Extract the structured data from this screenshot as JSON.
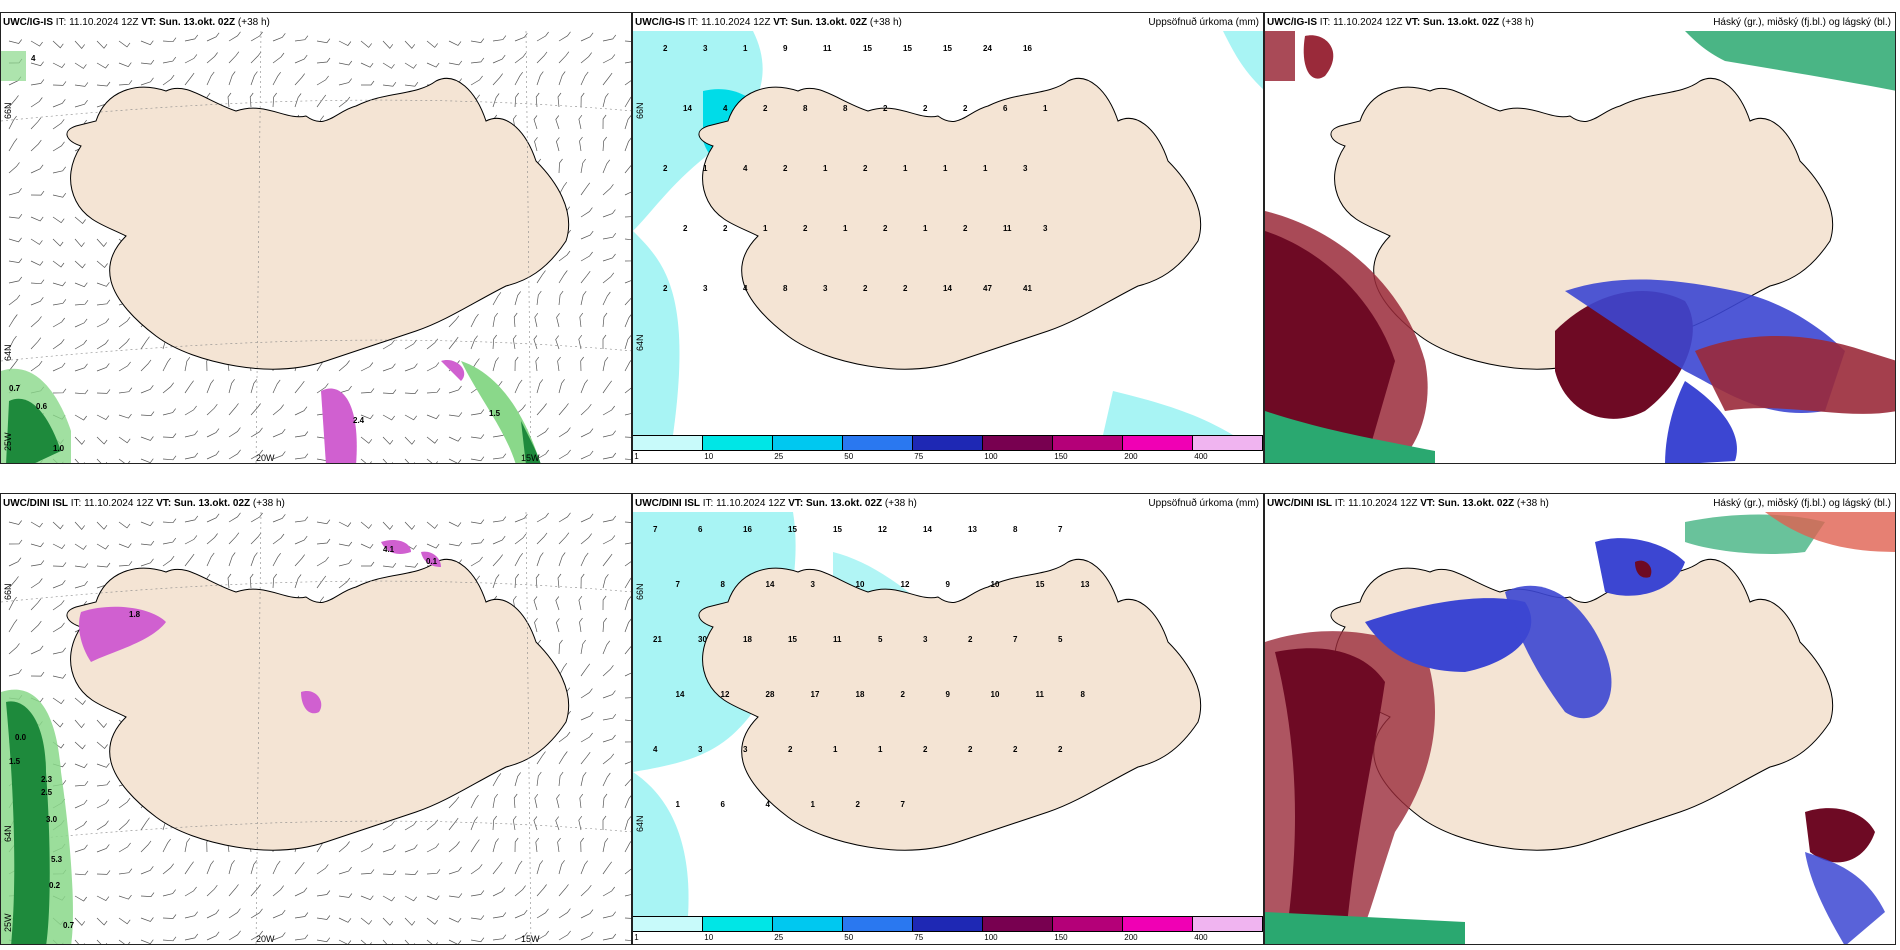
{
  "panels": [
    {
      "model": "UWC/IG-IS",
      "it": "IT: 11.10.2024 12Z",
      "vt": "VT: Sun. 13.okt. 02Z",
      "lead": "(+38 h)",
      "title": ""
    },
    {
      "model": "UWC/IG-IS",
      "it": "IT: 11.10.2024 12Z",
      "vt": "VT: Sun. 13.okt. 02Z",
      "lead": "(+38 h)",
      "title": "Uppsöfnuð úrkoma (mm)"
    },
    {
      "model": "UWC/IG-IS",
      "it": "IT: 11.10.2024 12Z",
      "vt": "VT: Sun. 13.okt. 02Z",
      "lead": "(+38 h)",
      "title": "Háský (gr.), miðský (fj.bl.) og lágský (bl.)"
    },
    {
      "model": "UWC/DINI ISL",
      "it": "IT: 11.10.2024 12Z",
      "vt": "VT: Sun. 13.okt. 02Z",
      "lead": "(+38 h)",
      "title": ""
    },
    {
      "model": "UWC/DINI ISL",
      "it": "IT: 11.10.2024 12Z",
      "vt": "VT: Sun. 13.okt. 02Z",
      "lead": "(+38 h)",
      "title": "Uppsöfnuð úrkoma (mm)"
    },
    {
      "model": "UWC/DINI ISL",
      "it": "IT: 11.10.2024 12Z",
      "vt": "VT: Sun. 13.okt. 02Z",
      "lead": "(+38 h)",
      "title": "Háský (gr.), miðský (fj.bl.) og lágský (bl.)"
    }
  ],
  "grid_labels": {
    "lat66": "66N",
    "lat64": "64N",
    "lon20": "20W",
    "lon15": "15W",
    "lon25": "25W"
  },
  "legend": {
    "ticks": [
      "1",
      "10",
      "25",
      "50",
      "75",
      "100",
      "150",
      "200",
      "400"
    ],
    "colors": [
      "#c8fafa",
      "#00e6e6",
      "#00c8f0",
      "#2a78f0",
      "#1e28b4",
      "#780050",
      "#b40078",
      "#f000b4",
      "#f0b4f0"
    ]
  },
  "colors": {
    "land": "#f4e4d4",
    "precip_light": "#a8f4f4",
    "precip_mid": "#00dce8",
    "high_cloud": "#2aa870",
    "mid_cloud": "#3c46d2",
    "low_cloud": "#7a0a2a"
  },
  "labels": {
    "wind_top": [
      "4",
      "0.6",
      "1.0",
      "0.7",
      "2.4",
      "1.5"
    ],
    "wind_bottom": [
      "0.0",
      "1.5",
      "2.3",
      "2.5",
      "3.0",
      "5.3",
      "0.2",
      "0.7",
      "4.1",
      "0.1",
      "1.8"
    ],
    "precip_top": [
      "2",
      "3",
      "1",
      "9",
      "11",
      "15",
      "15",
      "15",
      "24",
      "16",
      "14",
      "4",
      "2",
      "8",
      "8",
      "2",
      "2",
      "2",
      "6",
      "1",
      "2",
      "1",
      "4",
      "2",
      "1",
      "2",
      "1",
      "1",
      "1",
      "3",
      "2",
      "2",
      "1",
      "2",
      "1",
      "2",
      "1",
      "2",
      "11",
      "3",
      "2",
      "3",
      "4",
      "8",
      "3",
      "2",
      "2",
      "14",
      "47",
      "41"
    ],
    "precip_bottom": [
      "7",
      "6",
      "16",
      "15",
      "15",
      "12",
      "14",
      "13",
      "8",
      "7",
      "7",
      "8",
      "14",
      "3",
      "10",
      "12",
      "9",
      "10",
      "15",
      "13",
      "21",
      "30",
      "18",
      "15",
      "11",
      "5",
      "3",
      "2",
      "7",
      "5",
      "14",
      "12",
      "28",
      "17",
      "18",
      "2",
      "9",
      "10",
      "11",
      "8",
      "4",
      "3",
      "3",
      "2",
      "1",
      "1",
      "2",
      "2",
      "2",
      "2",
      "1",
      "6",
      "4",
      "1",
      "2",
      "7"
    ]
  }
}
